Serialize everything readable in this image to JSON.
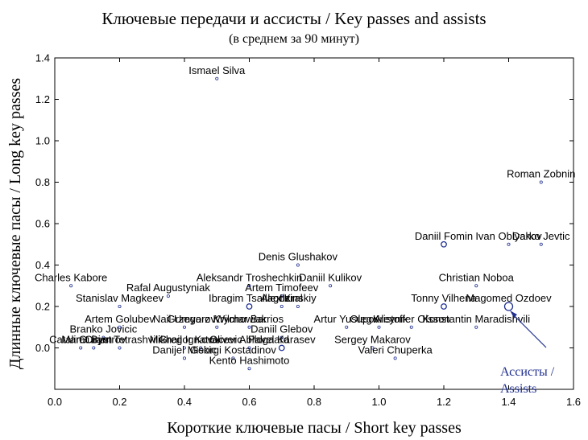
{
  "chart_data": {
    "type": "scatter",
    "title": "Ключевые передачи и ассисты / Key passes and assists",
    "subtitle": "(в среднем за 90 минут)",
    "xlabel": "Короткие ключевые пасы / Short key passes",
    "ylabel": "Длинные ключевые пасы / Long key passes",
    "xlim": [
      0.0,
      1.6
    ],
    "ylim": [
      -0.2,
      1.4
    ],
    "xticks": [
      "0.0",
      "0.2",
      "0.4",
      "0.6",
      "0.8",
      "1.0",
      "1.2",
      "1.4",
      "1.6"
    ],
    "yticks": [
      "0.0",
      "0.2",
      "0.4",
      "0.6",
      "0.8",
      "1.0",
      "1.2",
      "1.4"
    ],
    "grid": false,
    "marker_color": "#1f2f8f",
    "annotation": {
      "line1": "Ассисты /",
      "line2": "Assists"
    },
    "points": [
      {
        "name": "Ismael Silva",
        "x": 0.5,
        "y": 1.3,
        "assists": 0
      },
      {
        "name": "Roman Zobnin",
        "x": 1.5,
        "y": 0.8,
        "assists": 0
      },
      {
        "name": "Darko Jevtic",
        "x": 1.5,
        "y": 0.5,
        "assists": 0
      },
      {
        "name": "Daniil Fomin",
        "x": 1.2,
        "y": 0.5,
        "assists": 0.05
      },
      {
        "name": "Ivan Oblyakov",
        "x": 1.4,
        "y": 0.5,
        "assists": 0
      },
      {
        "name": "Denis Glushakov",
        "x": 0.75,
        "y": 0.4,
        "assists": 0
      },
      {
        "name": "Christian Noboa",
        "x": 1.3,
        "y": 0.3,
        "assists": 0
      },
      {
        "name": "Daniil Kulikov",
        "x": 0.85,
        "y": 0.3,
        "assists": 0
      },
      {
        "name": "Charles Kabore",
        "x": 0.05,
        "y": 0.3,
        "assists": 0
      },
      {
        "name": "Aleksandr Troshechkin",
        "x": 0.6,
        "y": 0.3,
        "assists": 0
      },
      {
        "name": "Magomed Ozdoev",
        "x": 1.4,
        "y": 0.2,
        "assists": 0.12
      },
      {
        "name": "Tonny Vilhena",
        "x": 1.2,
        "y": 0.2,
        "assists": 0.05
      },
      {
        "name": "Artem Timofeev",
        "x": 0.7,
        "y": 0.25,
        "assists": 0
      },
      {
        "name": "Rafal Augustyniak",
        "x": 0.35,
        "y": 0.25,
        "assists": 0
      },
      {
        "name": "Alex Kral",
        "x": 0.7,
        "y": 0.2,
        "assists": 0
      },
      {
        "name": "Ilzinskiy",
        "x": 0.75,
        "y": 0.2,
        "assists": 0
      },
      {
        "name": "Stanislav Magkeev",
        "x": 0.2,
        "y": 0.2,
        "assists": 0
      },
      {
        "name": "Ibragim Tsallagov",
        "x": 0.6,
        "y": 0.2,
        "assists": 0.05
      },
      {
        "name": "Nail Umyarov",
        "x": 0.4,
        "y": 0.1,
        "assists": 0
      },
      {
        "name": "Wilmar Barrios",
        "x": 0.6,
        "y": 0.1,
        "assists": 0
      },
      {
        "name": "Kristoffer Olsson",
        "x": 1.1,
        "y": 0.1,
        "assists": 0
      },
      {
        "name": "Konstantin Maradishvili",
        "x": 1.3,
        "y": 0.1,
        "assists": 0
      },
      {
        "name": "Artem Golubev",
        "x": 0.2,
        "y": 0.1,
        "assists": 0
      },
      {
        "name": "Grzegorz Krychowiak",
        "x": 0.5,
        "y": 0.1,
        "assists": 0
      },
      {
        "name": "Artur Yusupov",
        "x": 0.9,
        "y": 0.1,
        "assists": 0
      },
      {
        "name": "Oleg Aleynik",
        "x": 1.0,
        "y": 0.1,
        "assists": 0
      },
      {
        "name": "Daniil Glebov",
        "x": 0.7,
        "y": 0.05,
        "assists": 0
      },
      {
        "name": "Branko Jovicic",
        "x": 0.15,
        "y": 0.05,
        "assists": 0
      },
      {
        "name": "Catalin Cirjan",
        "x": 0.08,
        "y": 0.0,
        "assists": 0
      },
      {
        "name": "Marat Bystrov",
        "x": 0.12,
        "y": 0.0,
        "assists": 0
      },
      {
        "name": "Mikhail Ignatov",
        "x": 0.4,
        "y": 0.0,
        "assists": 0
      },
      {
        "name": "Gregor Kovacevic",
        "x": 0.45,
        "y": 0.0,
        "assists": 0
      },
      {
        "name": "Oliver Abildgaard",
        "x": 0.6,
        "y": 0.0,
        "assists": 0
      },
      {
        "name": "Guram Tetrashvili",
        "x": 0.2,
        "y": 0.0,
        "assists": 0
      },
      {
        "name": "Pavel Karasev",
        "x": 0.7,
        "y": 0.0,
        "assists": 0.05
      },
      {
        "name": "Sergey Makarov",
        "x": 0.98,
        "y": 0.0,
        "assists": 0
      },
      {
        "name": "Valeri Chuperka",
        "x": 1.05,
        "y": -0.05,
        "assists": 0
      },
      {
        "name": "Georgi Kostadinov",
        "x": 0.55,
        "y": -0.05,
        "assists": 0
      },
      {
        "name": "Danijel Miskic",
        "x": 0.4,
        "y": -0.05,
        "assists": 0
      },
      {
        "name": "Kento Hashimoto",
        "x": 0.6,
        "y": -0.1,
        "assists": 0
      }
    ]
  }
}
